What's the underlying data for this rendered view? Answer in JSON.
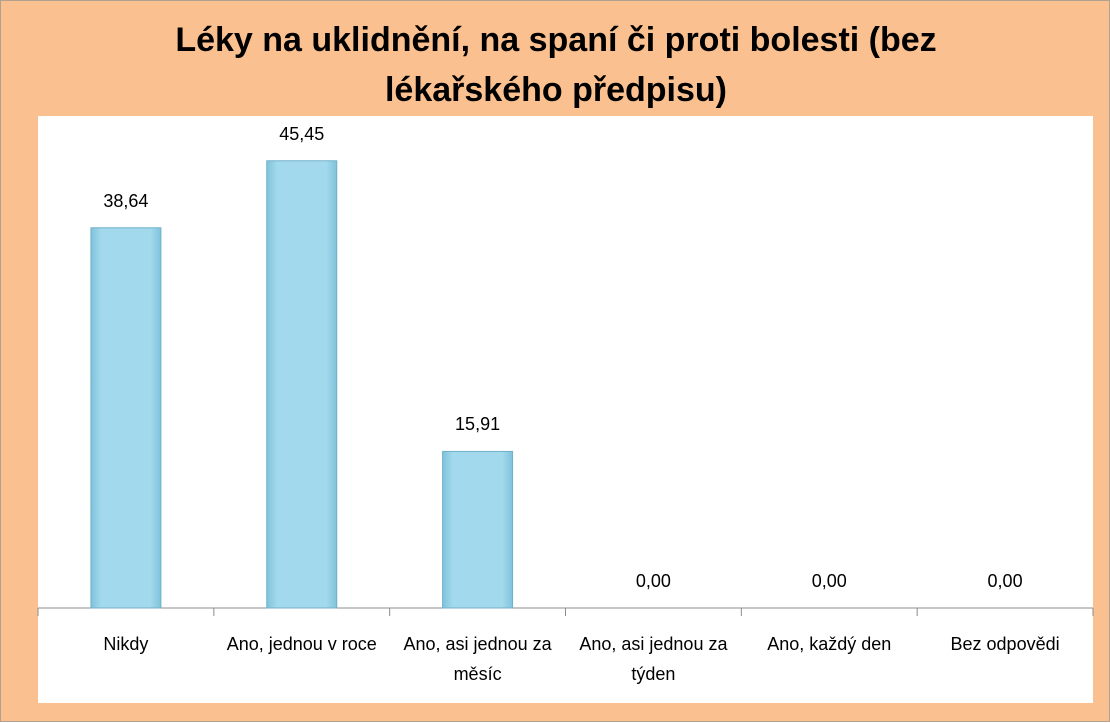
{
  "chart_data": {
    "type": "bar",
    "title": "Léky na uklidnění, na spaní či proti bolesti (bez lékařského předpisu)",
    "categories": [
      "Nikdy",
      "Ano, jednou v roce",
      "Ano, asi jednou za měsíc",
      "Ano, asi jednou za týden",
      "Ano, každý den",
      "Bez odpovědi"
    ],
    "values": [
      38.64,
      45.45,
      15.91,
      0,
      0,
      0
    ],
    "value_labels": [
      "38,64",
      "45,45",
      "15,91",
      "0,00",
      "0,00",
      "0,00"
    ],
    "color": "#a3d9ec",
    "ylim": [
      0,
      50
    ]
  }
}
